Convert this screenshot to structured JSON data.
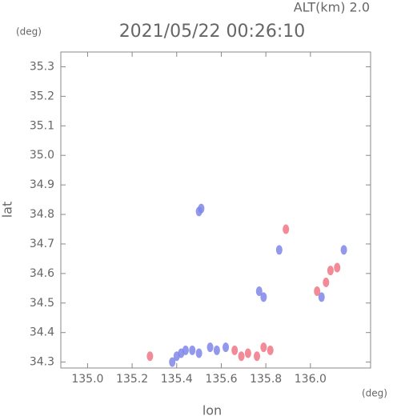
{
  "chart_data": {
    "type": "scatter",
    "title": "2021/05/22 00:26:10",
    "subtitle": "ALT(km) 2.0",
    "x_label": "lon",
    "y_label": "lat",
    "x_unit": "(deg)",
    "y_unit": "(deg)",
    "xlim": [
      134.88,
      136.27
    ],
    "ylim": [
      34.28,
      35.35
    ],
    "xticks": [
      {
        "value": 135.0,
        "label": "135.0"
      },
      135.2,
      135.4,
      135.6,
      135.8,
      {
        "value": 136.0,
        "label": "136.0"
      }
    ],
    "yticks": [
      34.3,
      34.4,
      34.5,
      34.6,
      34.7,
      34.8,
      34.9,
      {
        "value": 35.0,
        "label": "35.0"
      },
      35.1,
      35.2,
      35.3
    ],
    "grid": false,
    "series": [
      {
        "color": "#7f86e8",
        "x": [
          135.51,
          135.5,
          135.79,
          135.77,
          135.44,
          135.42,
          135.47,
          135.5,
          135.55,
          135.58,
          135.38,
          135.4,
          135.62,
          136.05,
          136.15,
          135.86
        ],
        "values": [
          34.82,
          34.81,
          34.52,
          34.54,
          34.34,
          34.33,
          34.34,
          34.33,
          34.35,
          34.34,
          34.3,
          34.32,
          34.35,
          34.52,
          34.68,
          34.68
        ]
      },
      {
        "color": "#f07585",
        "x": [
          135.28,
          135.72,
          135.76,
          135.79,
          135.82,
          135.66,
          136.09,
          136.12,
          136.03,
          136.07,
          135.89,
          135.69
        ],
        "values": [
          34.32,
          34.33,
          34.32,
          34.35,
          34.34,
          34.34,
          34.61,
          34.62,
          34.54,
          34.57,
          34.75,
          34.32
        ]
      }
    ]
  }
}
